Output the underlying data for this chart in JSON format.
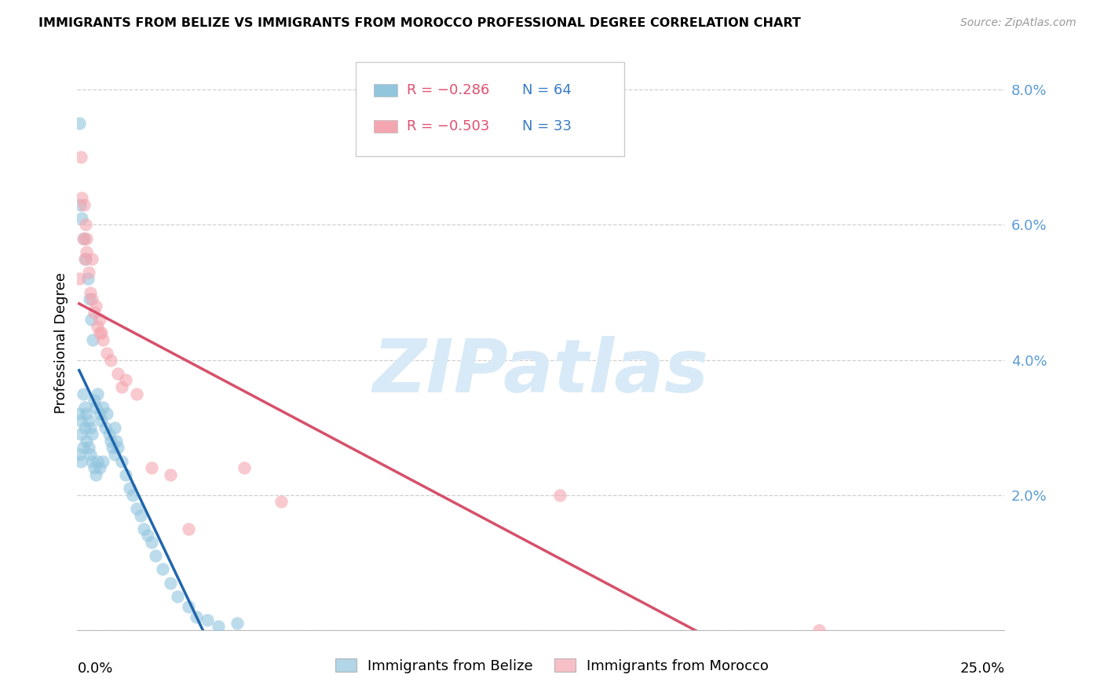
{
  "title": "IMMIGRANTS FROM BELIZE VS IMMIGRANTS FROM MOROCCO PROFESSIONAL DEGREE CORRELATION CHART",
  "source": "Source: ZipAtlas.com",
  "ylabel": "Professional Degree",
  "xlim": [
    0.0,
    25.0
  ],
  "ylim": [
    0.0,
    8.5
  ],
  "belize_color": "#92c5de",
  "morocco_color": "#f4a6b0",
  "belize_line_color": "#2166ac",
  "morocco_line_color": "#d6506a",
  "legend_r_belize": "R = −0.286",
  "legend_n_belize": "N = 64",
  "legend_r_morocco": "R = −0.503",
  "legend_n_morocco": "N = 33",
  "watermark": "ZIPatlas",
  "belize_x": [
    0.05,
    0.05,
    0.05,
    0.08,
    0.1,
    0.1,
    0.1,
    0.12,
    0.15,
    0.15,
    0.18,
    0.2,
    0.2,
    0.22,
    0.25,
    0.25,
    0.28,
    0.3,
    0.3,
    0.32,
    0.35,
    0.35,
    0.38,
    0.4,
    0.4,
    0.42,
    0.45,
    0.45,
    0.5,
    0.5,
    0.55,
    0.55,
    0.6,
    0.6,
    0.65,
    0.7,
    0.7,
    0.75,
    0.8,
    0.85,
    0.9,
    0.95,
    1.0,
    1.0,
    1.05,
    1.1,
    1.2,
    1.3,
    1.4,
    1.5,
    1.6,
    1.7,
    1.8,
    1.9,
    2.0,
    2.1,
    2.3,
    2.5,
    2.7,
    3.0,
    3.2,
    3.5,
    3.8,
    4.3
  ],
  "belize_y": [
    7.5,
    3.2,
    2.6,
    6.3,
    3.1,
    2.9,
    2.5,
    6.1,
    3.5,
    2.7,
    5.8,
    3.3,
    3.0,
    5.5,
    3.2,
    2.8,
    5.2,
    3.1,
    2.7,
    4.9,
    3.0,
    2.6,
    4.6,
    2.9,
    2.5,
    4.3,
    3.4,
    2.4,
    3.3,
    2.3,
    3.5,
    2.5,
    3.2,
    2.4,
    3.1,
    3.3,
    2.5,
    3.0,
    3.2,
    2.9,
    2.8,
    2.7,
    3.0,
    2.6,
    2.8,
    2.7,
    2.5,
    2.3,
    2.1,
    2.0,
    1.8,
    1.7,
    1.5,
    1.4,
    1.3,
    1.1,
    0.9,
    0.7,
    0.5,
    0.35,
    0.2,
    0.15,
    0.05,
    0.1
  ],
  "morocco_x": [
    0.05,
    0.1,
    0.12,
    0.15,
    0.18,
    0.2,
    0.22,
    0.25,
    0.3,
    0.35,
    0.4,
    0.45,
    0.5,
    0.55,
    0.6,
    0.65,
    0.7,
    0.8,
    0.9,
    1.1,
    1.3,
    1.6,
    2.0,
    2.5,
    3.0,
    4.5,
    5.5,
    13.0,
    20.0,
    0.25,
    0.4,
    0.6,
    1.2
  ],
  "morocco_y": [
    5.2,
    7.0,
    6.4,
    5.8,
    6.3,
    5.5,
    6.0,
    5.6,
    5.3,
    5.0,
    4.9,
    4.7,
    4.8,
    4.5,
    4.6,
    4.4,
    4.3,
    4.1,
    4.0,
    3.8,
    3.7,
    3.5,
    2.4,
    2.3,
    1.5,
    2.4,
    1.9,
    2.0,
    0.0,
    5.8,
    5.5,
    4.4,
    3.6
  ]
}
